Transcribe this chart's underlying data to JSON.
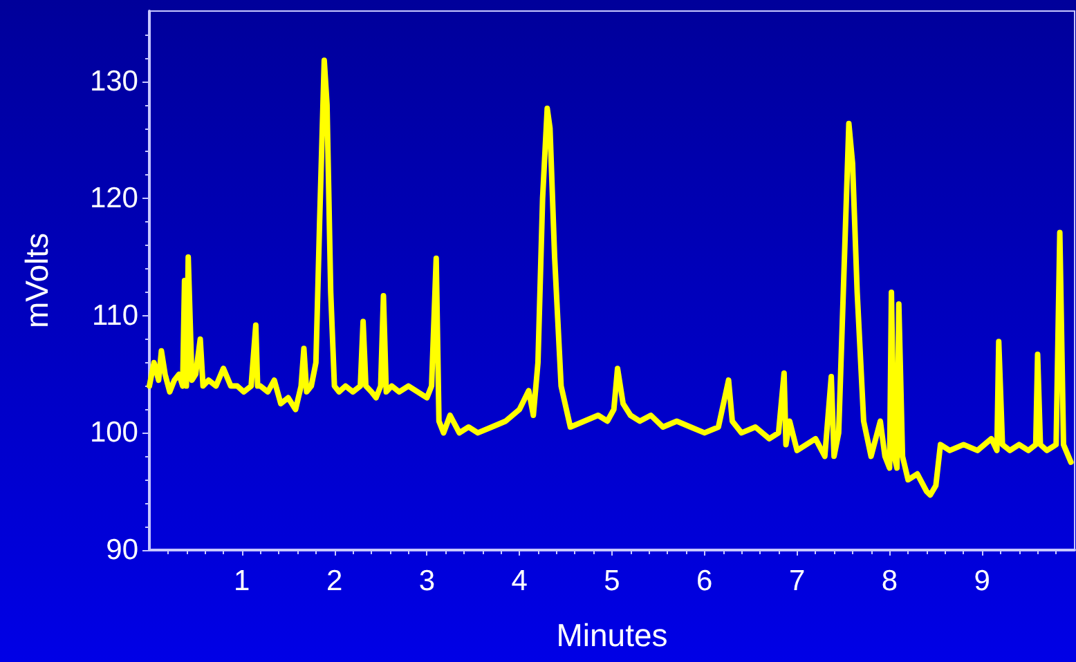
{
  "chart_data": {
    "type": "line",
    "xlabel": "Minutes",
    "ylabel": "mVolts",
    "xlim": [
      0,
      10
    ],
    "ylim": [
      90,
      136
    ],
    "xticks": [
      1,
      2,
      3,
      4,
      5,
      6,
      7,
      8,
      9
    ],
    "yticks": [
      90,
      100,
      110,
      120,
      130
    ],
    "grid": false,
    "marker": "none",
    "line_style": "solid",
    "series": [
      {
        "color": "#ffff00",
        "x": [
          0,
          0.05,
          0.1,
          0.13,
          0.17,
          0.22,
          0.27,
          0.32,
          0.36,
          0.38,
          0.4,
          0.42,
          0.46,
          0.5,
          0.55,
          0.58,
          0.64,
          0.72,
          0.8,
          0.88,
          0.95,
          1.02,
          1.1,
          1.15,
          1.17,
          1.2,
          1.28,
          1.35,
          1.42,
          1.5,
          1.58,
          1.64,
          1.67,
          1.7,
          1.75,
          1.8,
          1.84,
          1.89,
          1.92,
          1.96,
          2.0,
          2.05,
          2.12,
          2.2,
          2.28,
          2.31,
          2.34,
          2.4,
          2.45,
          2.5,
          2.53,
          2.56,
          2.62,
          2.7,
          2.8,
          2.9,
          3.0,
          3.05,
          3.1,
          3.13,
          3.18,
          3.25,
          3.35,
          3.45,
          3.55,
          3.7,
          3.85,
          4.0,
          4.1,
          4.15,
          4.2,
          4.25,
          4.3,
          4.33,
          4.38,
          4.45,
          4.55,
          4.7,
          4.85,
          4.95,
          5.02,
          5.06,
          5.12,
          5.2,
          5.3,
          5.42,
          5.55,
          5.7,
          5.85,
          6.0,
          6.15,
          6.26,
          6.3,
          6.4,
          6.55,
          6.7,
          6.8,
          6.86,
          6.88,
          6.92,
          7.0,
          7.1,
          7.2,
          7.3,
          7.37,
          7.4,
          7.45,
          7.5,
          7.56,
          7.6,
          7.65,
          7.72,
          7.8,
          7.9,
          7.95,
          8.0,
          8.02,
          8.05,
          8.08,
          8.1,
          8.14,
          8.2,
          8.3,
          8.4,
          8.44,
          8.5,
          8.55,
          8.65,
          8.8,
          8.95,
          9.1,
          9.16,
          9.18,
          9.22,
          9.3,
          9.4,
          9.5,
          9.58,
          9.6,
          9.63,
          9.7,
          9.8,
          9.84,
          9.88,
          9.96
        ],
        "values": [
          104,
          106,
          104.5,
          107,
          105,
          103.5,
          104.5,
          105,
          104,
          113,
          104,
          115,
          104.5,
          105,
          108,
          104,
          104.5,
          104,
          105.5,
          104,
          104,
          103.5,
          104,
          109.2,
          104,
          104,
          103.5,
          104.5,
          102.5,
          103,
          102,
          104,
          107.2,
          103.5,
          104,
          106,
          118,
          131.8,
          128,
          112,
          104,
          103.5,
          104,
          103.5,
          104,
          109.5,
          104,
          103.5,
          103,
          104,
          111.7,
          103.5,
          104,
          103.5,
          104,
          103.5,
          103,
          104,
          114.9,
          101,
          100,
          101.5,
          100,
          100.5,
          100,
          100.5,
          101,
          102,
          103.6,
          101.5,
          106,
          120,
          127.7,
          126,
          115,
          104,
          100.5,
          101,
          101.5,
          101,
          102,
          105.5,
          102.5,
          101.5,
          101,
          101.5,
          100.5,
          101,
          100.5,
          100,
          100.5,
          104.5,
          101,
          100,
          100.5,
          99.5,
          100,
          105.1,
          99,
          101,
          98.5,
          99,
          99.5,
          98,
          104.8,
          98,
          100,
          112,
          126.4,
          123,
          112,
          101,
          98,
          101,
          98,
          97,
          112,
          98,
          97,
          111,
          98,
          96,
          96.5,
          95,
          94.7,
          95.5,
          99,
          98.5,
          99,
          98.5,
          99.5,
          98.5,
          107.8,
          99,
          98.5,
          99,
          98.5,
          99,
          106.7,
          99,
          98.5,
          99,
          117.1,
          99,
          97.5
        ]
      }
    ]
  }
}
